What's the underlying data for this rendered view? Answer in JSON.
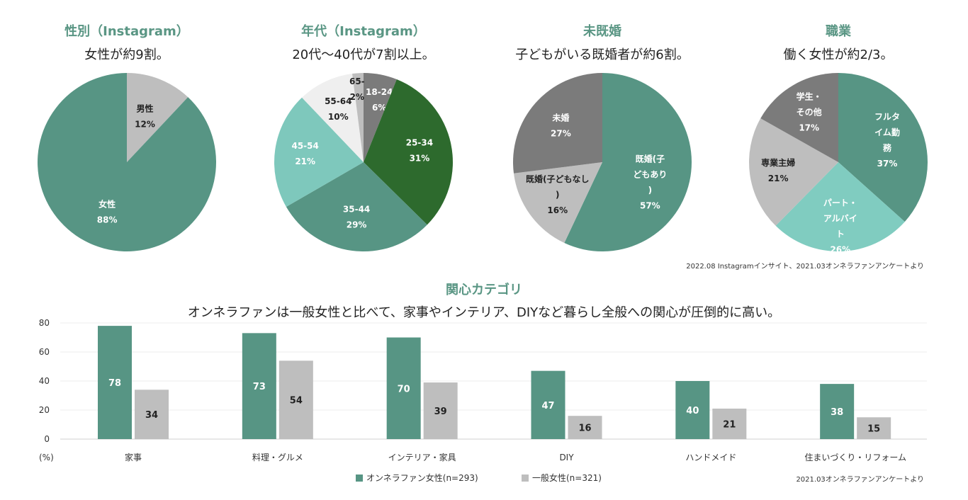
{
  "colors": {
    "teal": "#579584",
    "gray_light": "#bebebe",
    "gray_dark": "#7b7b7b",
    "dark_green": "#2d6a2d",
    "mint": "#7ec8bc",
    "white_gray": "#efefef",
    "pale_mint": "#80ccc0",
    "title_green": "#5a9684"
  },
  "pies": [
    {
      "title": "性別（Instagram）",
      "subtitle": "女性が約9割。"
    },
    {
      "title": "年代（Instagram）",
      "subtitle": "20代～40代が7割以上。"
    },
    {
      "title": "未既婚",
      "subtitle": "子どもがいる既婚者が約6割。"
    },
    {
      "title": "職業",
      "subtitle": "働く女性が約2/3。"
    }
  ],
  "pie_source": "2022.08 Instagramインサイト、2021.03オンネラファンアンケートより",
  "bar_section": {
    "title": "関心カテゴリ",
    "subtitle": "オンネラファンは一般女性と比べて、家事やインテリア、DIYなど暮らし全般への関心が圧倒的に高い。",
    "y_unit": "(%)",
    "source": "2021.03オンネラファンアンケートより"
  },
  "chart_data": [
    {
      "type": "pie",
      "title": "性別（Instagram）",
      "slices": [
        {
          "label": "男性",
          "value": 12,
          "color": "#bebebe",
          "text_color": "#222222"
        },
        {
          "label": "女性",
          "value": 88,
          "color": "#579584",
          "text_color": "#ffffff"
        }
      ]
    },
    {
      "type": "pie",
      "title": "年代（Instagram）",
      "slices": [
        {
          "label": "18-24",
          "value": 6,
          "color": "#7b7b7b",
          "text_color": "#ffffff"
        },
        {
          "label": "25-34",
          "value": 31,
          "color": "#2d6a2d",
          "text_color": "#ffffff"
        },
        {
          "label": "35-44",
          "value": 29,
          "color": "#579584",
          "text_color": "#ffffff"
        },
        {
          "label": "45-54",
          "value": 21,
          "color": "#7ec8bc",
          "text_color": "#ffffff"
        },
        {
          "label": "55-64",
          "value": 10,
          "color": "#efefef",
          "text_color": "#222222"
        },
        {
          "label": "65-",
          "value": 2,
          "color": "#bebebe",
          "text_color": "#222222"
        }
      ]
    },
    {
      "type": "pie",
      "title": "未既婚",
      "slices": [
        {
          "label": "既婚(子どもあり)",
          "value": 57,
          "color": "#579584",
          "text_color": "#ffffff"
        },
        {
          "label": "既婚(子どもなし)",
          "value": 16,
          "color": "#bebebe",
          "text_color": "#222222"
        },
        {
          "label": "未婚",
          "value": 27,
          "color": "#7b7b7b",
          "text_color": "#ffffff"
        }
      ]
    },
    {
      "type": "pie",
      "title": "職業",
      "slices": [
        {
          "label": "フルタイム勤務",
          "value": 37,
          "color": "#579584",
          "text_color": "#ffffff"
        },
        {
          "label": "パート・アルバイト",
          "value": 26,
          "color": "#80ccc0",
          "text_color": "#ffffff"
        },
        {
          "label": "専業主婦",
          "value": 21,
          "color": "#bebebe",
          "text_color": "#222222"
        },
        {
          "label": "学生・その他",
          "value": 17,
          "color": "#7b7b7b",
          "text_color": "#ffffff"
        }
      ]
    },
    {
      "type": "bar",
      "title": "関心カテゴリ",
      "categories": [
        "家事",
        "料理・グルメ",
        "インテリア・家具",
        "DIY",
        "ハンドメイド",
        "住まいづくり・リフォーム"
      ],
      "series": [
        {
          "name": "オンネラファン女性(n=293)",
          "color": "#579584",
          "values": [
            78,
            73,
            70,
            47,
            40,
            38
          ]
        },
        {
          "name": "一般女性(n=321)",
          "color": "#bebebe",
          "values": [
            34,
            54,
            39,
            16,
            21,
            15
          ]
        }
      ],
      "ylim": [
        0,
        80
      ],
      "yticks": [
        0,
        20,
        40,
        60,
        80
      ],
      "grid": true,
      "legend": "bottom"
    }
  ]
}
